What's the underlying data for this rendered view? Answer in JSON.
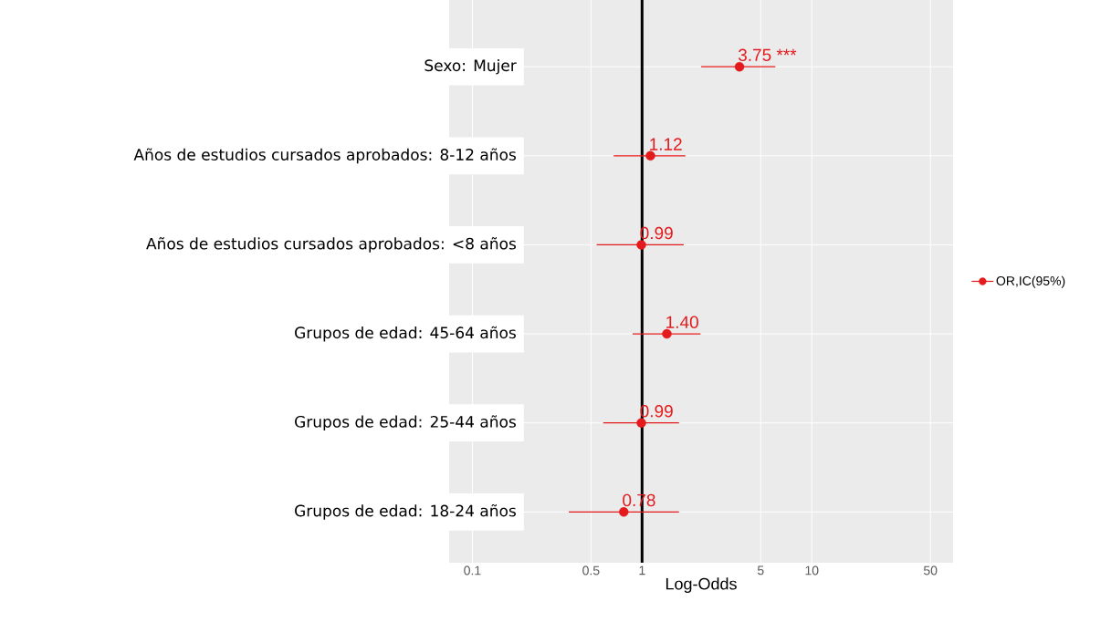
{
  "chart_data": {
    "type": "scatter",
    "orientation": "horizontal",
    "xlabel": "Log-Odds",
    "categories": [
      "Sexo: Mujer",
      "Años de estudios cursados aprobados: 8-12 años",
      "Años de estudios cursados aprobados: <8 años",
      "Grupos de edad: 45-64 años",
      "Grupos de edad: 25-44 años",
      "Grupos de edad: 18-24 años"
    ],
    "series": [
      {
        "name": "OR,IC(95%)",
        "color": "#e41a1c",
        "values": [
          3.75,
          1.12,
          0.99,
          1.4,
          0.99,
          0.78
        ],
        "errors": [
          [
            2.23,
            6.1
          ],
          [
            0.68,
            1.8
          ],
          [
            0.54,
            1.76
          ],
          [
            0.88,
            2.21
          ],
          [
            0.59,
            1.65
          ],
          [
            0.37,
            1.65
          ]
        ],
        "value_labels": [
          "3.75 ***",
          "1.12",
          "0.99",
          "1.40",
          "0.99",
          "0.78"
        ]
      }
    ],
    "xlim": [
      0.073,
      68
    ],
    "xticks": [
      0.1,
      0.5,
      1,
      5,
      10,
      50
    ],
    "log": "x",
    "grid": true,
    "legend": "right",
    "marker": "circle",
    "ref_lines": [
      {
        "axis": "x",
        "value": 1,
        "color": "#000000"
      }
    ]
  }
}
